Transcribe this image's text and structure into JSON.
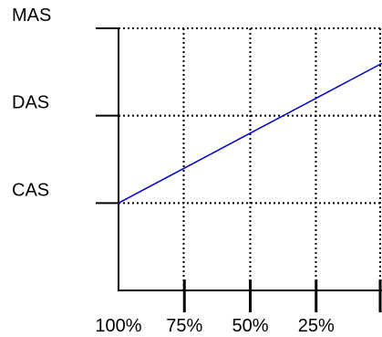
{
  "chart_data": {
    "type": "line",
    "title": "",
    "xlabel": "",
    "ylabel": "",
    "x_tick_labels": [
      "100%",
      "75%",
      "50%",
      "25%",
      ""
    ],
    "x_tick_values": [
      100,
      75,
      50,
      25,
      0
    ],
    "x_range": [
      100,
      0
    ],
    "y_tick_labels": [
      "CAS",
      "DAS",
      "MAS"
    ],
    "y_tick_values": [
      1,
      2,
      3
    ],
    "y_range": [
      0,
      3
    ],
    "grid": true,
    "grid_style": "dotted",
    "series": [
      {
        "color": "#0000cc",
        "x": [
          100,
          0
        ],
        "y": [
          1,
          2.6
        ]
      }
    ]
  }
}
